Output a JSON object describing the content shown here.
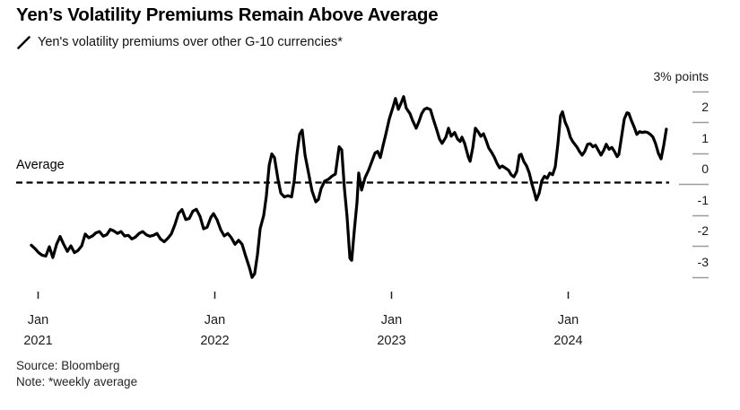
{
  "header": {
    "title": "Yen’s Volatility Premiums Remain Above Average",
    "legend_label": "Yen's volatility premiums over other G-10 currencies*"
  },
  "footer": {
    "source": "Source: Bloomberg",
    "note": "Note: *weekly average"
  },
  "colors": {
    "series_line": "#000000",
    "average_line": "#000000",
    "axis_tick": "#9b9b9b",
    "x_tick": "#222222",
    "text": "#1a1a1a",
    "background": "#ffffff"
  },
  "chart_data": {
    "type": "line",
    "title": "Yen’s Volatility Premiums Remain Above Average",
    "xlabel": "",
    "ylabel": "% points",
    "unit_label": "3% points",
    "average_label": "Average",
    "average_value": 0,
    "grid": false,
    "legend_position": "top-left",
    "ylim": [
      -3.4,
      3
    ],
    "xlim": [
      2020.94,
      2024.62
    ],
    "y_axis": {
      "side": "right",
      "ticks": [
        {
          "value": 3,
          "label": "3% points"
        },
        {
          "value": 2,
          "label": "2"
        },
        {
          "value": 1,
          "label": "1"
        },
        {
          "value": 0,
          "label": "0"
        },
        {
          "value": -1,
          "label": "-1"
        },
        {
          "value": -2,
          "label": "-2"
        },
        {
          "value": -3,
          "label": "-3"
        }
      ]
    },
    "x_axis": {
      "ticks": [
        {
          "t": 2021,
          "label": "Jan",
          "year": "2021"
        },
        {
          "t": 2022,
          "label": "Jan",
          "year": "2022"
        },
        {
          "t": 2023,
          "label": "Jan",
          "year": "2023"
        },
        {
          "t": 2024,
          "label": "Jan",
          "year": "2024"
        }
      ]
    },
    "series": [
      {
        "name": "Yen's volatility premiums over other G-10 currencies*",
        "units": "% points vs G-10 average, weekly",
        "points": [
          [
            2020.964,
            -1.98
          ],
          [
            2020.985,
            -2.09
          ],
          [
            2021.005,
            -2.22
          ],
          [
            2021.025,
            -2.3
          ],
          [
            2021.046,
            -2.33
          ],
          [
            2021.066,
            -2.03
          ],
          [
            2021.086,
            -2.38
          ],
          [
            2021.107,
            -1.95
          ],
          [
            2021.127,
            -1.7
          ],
          [
            2021.147,
            -1.95
          ],
          [
            2021.168,
            -2.18
          ],
          [
            2021.188,
            -2.0
          ],
          [
            2021.208,
            -2.22
          ],
          [
            2021.228,
            -2.15
          ],
          [
            2021.249,
            -2.0
          ],
          [
            2021.269,
            -1.62
          ],
          [
            2021.289,
            -1.74
          ],
          [
            2021.31,
            -1.68
          ],
          [
            2021.33,
            -1.58
          ],
          [
            2021.35,
            -1.54
          ],
          [
            2021.371,
            -1.69
          ],
          [
            2021.391,
            -1.64
          ],
          [
            2021.411,
            -1.47
          ],
          [
            2021.431,
            -1.52
          ],
          [
            2021.452,
            -1.6
          ],
          [
            2021.472,
            -1.54
          ],
          [
            2021.492,
            -1.68
          ],
          [
            2021.513,
            -1.66
          ],
          [
            2021.533,
            -1.78
          ],
          [
            2021.553,
            -1.72
          ],
          [
            2021.574,
            -1.6
          ],
          [
            2021.594,
            -1.54
          ],
          [
            2021.614,
            -1.64
          ],
          [
            2021.634,
            -1.69
          ],
          [
            2021.655,
            -1.66
          ],
          [
            2021.675,
            -1.6
          ],
          [
            2021.695,
            -1.78
          ],
          [
            2021.716,
            -1.87
          ],
          [
            2021.736,
            -1.76
          ],
          [
            2021.756,
            -1.62
          ],
          [
            2021.777,
            -1.31
          ],
          [
            2021.797,
            -0.95
          ],
          [
            2021.817,
            -0.83
          ],
          [
            2021.838,
            -1.15
          ],
          [
            2021.858,
            -1.12
          ],
          [
            2021.878,
            -0.88
          ],
          [
            2021.898,
            -0.82
          ],
          [
            2021.919,
            -1.05
          ],
          [
            2021.939,
            -1.45
          ],
          [
            2021.959,
            -1.4
          ],
          [
            2021.98,
            -1.08
          ],
          [
            2021.995,
            -0.96
          ],
          [
            2022.015,
            -1.16
          ],
          [
            2022.036,
            -1.48
          ],
          [
            2022.056,
            -1.68
          ],
          [
            2022.076,
            -1.6
          ],
          [
            2022.096,
            -1.74
          ],
          [
            2022.117,
            -1.95
          ],
          [
            2022.137,
            -1.82
          ],
          [
            2022.157,
            -1.95
          ],
          [
            2022.178,
            -2.35
          ],
          [
            2022.198,
            -2.7
          ],
          [
            2022.213,
            -3.02
          ],
          [
            2022.228,
            -2.9
          ],
          [
            2022.244,
            -2.27
          ],
          [
            2022.259,
            -1.45
          ],
          [
            2022.279,
            -1.02
          ],
          [
            2022.294,
            -0.4
          ],
          [
            2022.31,
            0.6
          ],
          [
            2022.325,
            0.97
          ],
          [
            2022.34,
            0.85
          ],
          [
            2022.36,
            0.15
          ],
          [
            2022.376,
            -0.3
          ],
          [
            2022.396,
            -0.42
          ],
          [
            2022.416,
            -0.38
          ],
          [
            2022.437,
            -0.42
          ],
          [
            2022.452,
            0.1
          ],
          [
            2022.467,
            0.95
          ],
          [
            2022.482,
            1.6
          ],
          [
            2022.497,
            1.74
          ],
          [
            2022.513,
            0.93
          ],
          [
            2022.533,
            0.35
          ],
          [
            2022.553,
            -0.23
          ],
          [
            2022.574,
            -0.58
          ],
          [
            2022.589,
            -0.5
          ],
          [
            2022.604,
            -0.15
          ],
          [
            2022.624,
            0.09
          ],
          [
            2022.645,
            0.15
          ],
          [
            2022.665,
            0.25
          ],
          [
            2022.685,
            0.32
          ],
          [
            2022.706,
            1.2
          ],
          [
            2022.721,
            1.1
          ],
          [
            2022.736,
            -0.15
          ],
          [
            2022.751,
            -1.05
          ],
          [
            2022.767,
            -2.4
          ],
          [
            2022.777,
            -2.47
          ],
          [
            2022.792,
            -1.5
          ],
          [
            2022.807,
            -0.6
          ],
          [
            2022.817,
            0.35
          ],
          [
            2022.833,
            -0.2
          ],
          [
            2022.853,
            0.2
          ],
          [
            2022.873,
            0.45
          ],
          [
            2022.893,
            0.75
          ],
          [
            2022.909,
            1.0
          ],
          [
            2022.924,
            1.05
          ],
          [
            2022.939,
            0.85
          ],
          [
            2022.954,
            1.22
          ],
          [
            2022.97,
            1.6
          ],
          [
            2022.99,
            2.1
          ],
          [
            2023.01,
            2.47
          ],
          [
            2023.025,
            2.76
          ],
          [
            2023.041,
            2.41
          ],
          [
            2023.056,
            2.6
          ],
          [
            2023.071,
            2.82
          ],
          [
            2023.086,
            2.45
          ],
          [
            2023.107,
            2.27
          ],
          [
            2023.122,
            2.05
          ],
          [
            2023.142,
            1.8
          ],
          [
            2023.157,
            2.0
          ],
          [
            2023.173,
            2.27
          ],
          [
            2023.188,
            2.41
          ],
          [
            2023.203,
            2.45
          ],
          [
            2023.223,
            2.4
          ],
          [
            2023.239,
            2.09
          ],
          [
            2023.259,
            1.74
          ],
          [
            2023.274,
            1.45
          ],
          [
            2023.289,
            1.31
          ],
          [
            2023.31,
            1.51
          ],
          [
            2023.325,
            1.8
          ],
          [
            2023.34,
            1.54
          ],
          [
            2023.36,
            1.66
          ],
          [
            2023.376,
            1.45
          ],
          [
            2023.391,
            1.37
          ],
          [
            2023.401,
            1.51
          ],
          [
            2023.416,
            1.31
          ],
          [
            2023.437,
            0.87
          ],
          [
            2023.447,
            0.73
          ],
          [
            2023.462,
            1.16
          ],
          [
            2023.477,
            1.8
          ],
          [
            2023.492,
            1.69
          ],
          [
            2023.508,
            1.54
          ],
          [
            2023.523,
            1.62
          ],
          [
            2023.538,
            1.4
          ],
          [
            2023.553,
            1.16
          ],
          [
            2023.569,
            1.02
          ],
          [
            2023.584,
            0.87
          ],
          [
            2023.599,
            0.67
          ],
          [
            2023.614,
            0.52
          ],
          [
            2023.629,
            0.58
          ],
          [
            2023.645,
            0.52
          ],
          [
            2023.665,
            0.44
          ],
          [
            2023.68,
            0.29
          ],
          [
            2023.695,
            0.23
          ],
          [
            2023.711,
            0.4
          ],
          [
            2023.726,
            0.93
          ],
          [
            2023.736,
            0.96
          ],
          [
            2023.751,
            0.73
          ],
          [
            2023.767,
            0.58
          ],
          [
            2023.782,
            0.35
          ],
          [
            2023.797,
            0.0
          ],
          [
            2023.812,
            -0.3
          ],
          [
            2023.822,
            -0.52
          ],
          [
            2023.838,
            -0.3
          ],
          [
            2023.853,
            0.1
          ],
          [
            2023.868,
            0.25
          ],
          [
            2023.883,
            0.18
          ],
          [
            2023.898,
            0.35
          ],
          [
            2023.914,
            0.3
          ],
          [
            2023.929,
            0.55
          ],
          [
            2023.944,
            1.3
          ],
          [
            2023.959,
            2.2
          ],
          [
            2023.97,
            2.33
          ],
          [
            2023.985,
            2.0
          ],
          [
            2024.0,
            1.8
          ],
          [
            2024.015,
            1.5
          ],
          [
            2024.03,
            1.35
          ],
          [
            2024.051,
            1.2
          ],
          [
            2024.066,
            1.05
          ],
          [
            2024.081,
            0.93
          ],
          [
            2024.096,
            1.05
          ],
          [
            2024.112,
            1.28
          ],
          [
            2024.127,
            1.3
          ],
          [
            2024.142,
            1.2
          ],
          [
            2024.157,
            1.25
          ],
          [
            2024.173,
            1.08
          ],
          [
            2024.188,
            0.93
          ],
          [
            2024.203,
            1.08
          ],
          [
            2024.218,
            1.28
          ],
          [
            2024.234,
            1.12
          ],
          [
            2024.249,
            1.18
          ],
          [
            2024.264,
            1.05
          ],
          [
            2024.279,
            0.88
          ],
          [
            2024.289,
            0.95
          ],
          [
            2024.305,
            1.55
          ],
          [
            2024.32,
            2.1
          ],
          [
            2024.335,
            2.3
          ],
          [
            2024.345,
            2.28
          ],
          [
            2024.36,
            2.05
          ],
          [
            2024.376,
            1.83
          ],
          [
            2024.391,
            1.6
          ],
          [
            2024.406,
            1.69
          ],
          [
            2024.421,
            1.66
          ],
          [
            2024.437,
            1.68
          ],
          [
            2024.452,
            1.66
          ],
          [
            2024.467,
            1.6
          ],
          [
            2024.482,
            1.51
          ],
          [
            2024.497,
            1.3
          ],
          [
            2024.513,
            0.98
          ],
          [
            2024.528,
            0.81
          ],
          [
            2024.543,
            1.25
          ],
          [
            2024.558,
            1.77
          ]
        ]
      }
    ]
  }
}
